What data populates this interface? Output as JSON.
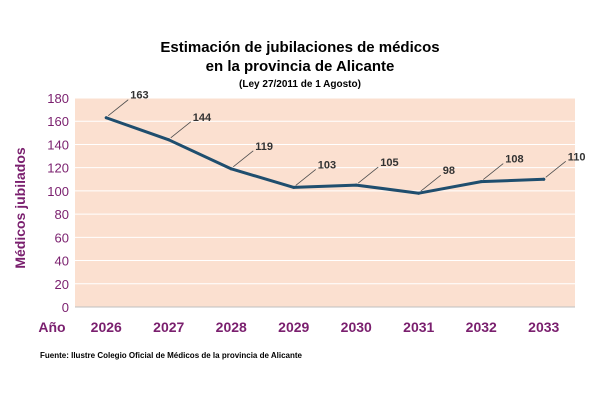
{
  "title_line1": "Estimación de jubilaciones de médicos",
  "title_line2": "en la provincia de Alicante",
  "subtitle": "(Ley 27/2011 de 1 Agosto)",
  "source": "Fuente: Ilustre Colegio Oficial de Médicos de la provincia de Alicante",
  "chart_data": {
    "type": "line",
    "title": "Estimación de jubilaciones de médicos en la provincia de Alicante",
    "subtitle": "(Ley 27/2011 de 1 Agosto)",
    "xlabel": "Año",
    "ylabel": "Médicos jubilados",
    "categories": [
      "2026",
      "2027",
      "2028",
      "2029",
      "2030",
      "2031",
      "2032",
      "2033"
    ],
    "values": [
      163,
      144,
      119,
      103,
      105,
      98,
      108,
      110
    ],
    "ylim": [
      0,
      180
    ],
    "yticks": [
      0,
      20,
      40,
      60,
      80,
      100,
      120,
      140,
      160,
      180
    ],
    "grid": true,
    "legend": "none",
    "colors": {
      "line": "#1f4e6e",
      "plot_bg": "#fbe0d0",
      "grid": "#ffffff",
      "axis_text": "#7a1f6e"
    }
  }
}
